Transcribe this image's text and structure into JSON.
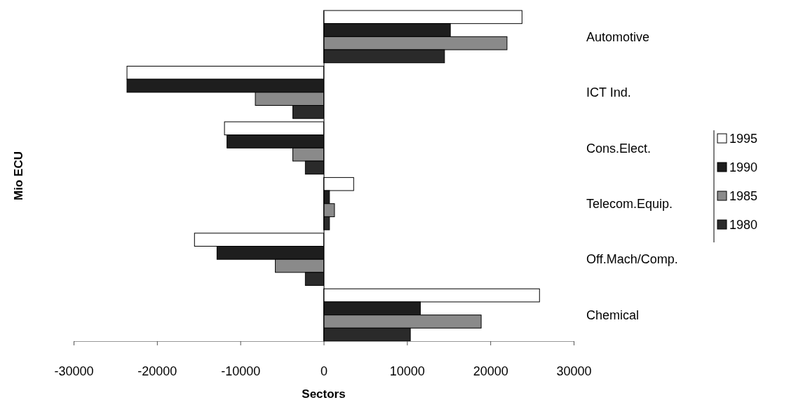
{
  "chart_data": {
    "type": "bar",
    "orientation": "horizontal",
    "xlabel": "Sectors",
    "ylabel": "Mio ECU",
    "categories": [
      "Automotive",
      "ICT Ind.",
      "Cons.Elect.",
      "Telecom.Equip.",
      "Off.Mach/Comp.",
      "Chemical"
    ],
    "series": [
      {
        "name": "1995",
        "color": "#ffffff",
        "values": [
          23800,
          -23600,
          -11900,
          3600,
          -15500,
          25900
        ]
      },
      {
        "name": "1990",
        "color": "#1e1e1e",
        "values": [
          15200,
          -23600,
          -11600,
          700,
          -12800,
          11600
        ]
      },
      {
        "name": "1985",
        "color": "#8a8a8a",
        "values": [
          22000,
          -8200,
          -3700,
          1300,
          -5800,
          18900
        ]
      },
      {
        "name": "1980",
        "color": "#2a2a2a",
        "values": [
          14500,
          -3700,
          -2200,
          700,
          -2200,
          10400
        ]
      }
    ],
    "xlim": [
      -30000,
      30000
    ],
    "xticks": [
      -30000,
      -20000,
      -10000,
      0,
      10000,
      20000,
      30000
    ],
    "legend": "right"
  }
}
